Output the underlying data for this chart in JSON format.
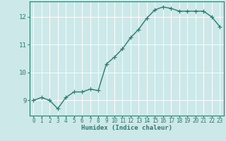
{
  "x": [
    0,
    1,
    2,
    3,
    4,
    5,
    6,
    7,
    8,
    9,
    10,
    11,
    12,
    13,
    14,
    15,
    16,
    17,
    18,
    19,
    20,
    21,
    22,
    23
  ],
  "y": [
    9.0,
    9.1,
    9.0,
    8.7,
    9.1,
    9.3,
    9.3,
    9.4,
    9.35,
    10.3,
    10.55,
    10.85,
    11.25,
    11.55,
    11.95,
    12.25,
    12.35,
    12.3,
    12.2,
    12.2,
    12.2,
    12.2,
    12.0,
    11.65
  ],
  "line_color": "#2d7a6e",
  "marker": "+",
  "marker_size": 4,
  "background_color": "#cce8e8",
  "grid_color": "#ffffff",
  "xlabel": "Humidex (Indice chaleur)",
  "xlim": [
    -0.5,
    23.5
  ],
  "ylim": [
    8.45,
    12.55
  ],
  "yticks": [
    9,
    10,
    11,
    12
  ],
  "xticks": [
    0,
    1,
    2,
    3,
    4,
    5,
    6,
    7,
    8,
    9,
    10,
    11,
    12,
    13,
    14,
    15,
    16,
    17,
    18,
    19,
    20,
    21,
    22,
    23
  ],
  "tick_color": "#2d7a6e",
  "label_color": "#2d7a6e",
  "spine_color": "#2d7a6e",
  "xlabel_fontsize": 6.5,
  "ytick_fontsize": 6.5,
  "xtick_fontsize": 5.5,
  "line_width": 1.0,
  "marker_edge_width": 0.8
}
